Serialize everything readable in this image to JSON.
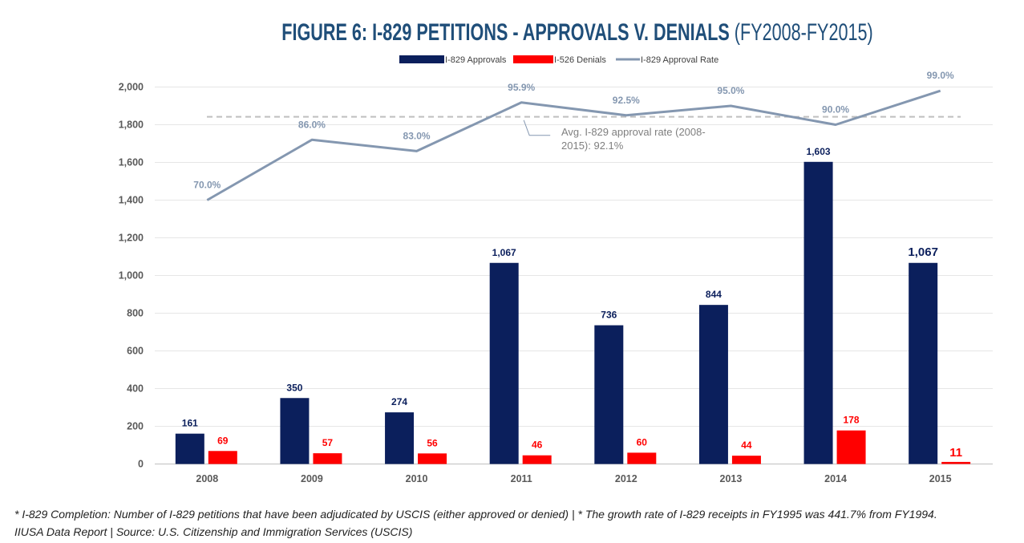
{
  "title": {
    "main": "FIGURE 6: I-829 PETITIONS - APPROVALS V. DENIALS",
    "range": "(FY2008-FY2015)"
  },
  "chart_data": {
    "type": "bar",
    "categories": [
      "2008",
      "2009",
      "2010",
      "2011",
      "2012",
      "2013",
      "2014",
      "2015"
    ],
    "series": [
      {
        "name": "I-829 Approvals",
        "kind": "bar",
        "color": "#0b1f5c",
        "values": [
          161,
          350,
          274,
          1067,
          736,
          844,
          1603,
          1067
        ],
        "labels": [
          "161",
          "350",
          "274",
          "1,067",
          "736",
          "844",
          "1,603",
          "1,067"
        ]
      },
      {
        "name": "I-526 Denials",
        "kind": "bar",
        "color": "#ff0000",
        "values": [
          69,
          57,
          56,
          46,
          60,
          44,
          178,
          11
        ],
        "labels": [
          "69",
          "57",
          "56",
          "46",
          "60",
          "44",
          "178",
          "11"
        ]
      },
      {
        "name": "I-829 Approval Rate",
        "kind": "line",
        "color": "#8497b0",
        "values": [
          70.0,
          86.0,
          83.0,
          95.9,
          92.5,
          95.0,
          90.0,
          99.0
        ],
        "labels": [
          "70.0%",
          "86.0%",
          "83.0%",
          "95.9%",
          "92.5%",
          "95.0%",
          "90.0%",
          "99.0%"
        ]
      }
    ],
    "ylim": [
      0,
      2000
    ],
    "yticks": [
      0,
      200,
      400,
      600,
      800,
      1000,
      1200,
      1400,
      1600,
      1800,
      2000
    ],
    "ytick_labels": [
      "0",
      "200",
      "400",
      "600",
      "800",
      "1,000",
      "1,200",
      "1,400",
      "1,600",
      "1,800",
      "2,000"
    ],
    "average_rate": 92.1,
    "annotation": [
      "Avg. I-829 approval rate (2008-",
      "2015): 92.1%"
    ],
    "grid": true,
    "legend": "top"
  },
  "footer": {
    "line1": "* I-829 Completion: Number of I-829 petitions that have been adjudicated by USCIS (either approved or denied) | * The growth rate of I-829 receipts in FY1995 was 441.7% from FY1994.",
    "line2": "IIUSA Data Report | Source: U.S. Citizenship and Immigration Services (USCIS)"
  },
  "colors": {
    "approvals": "#0b1f5c",
    "denials": "#ff0000",
    "rate": "#8497b0",
    "title": "#1f4e79"
  }
}
